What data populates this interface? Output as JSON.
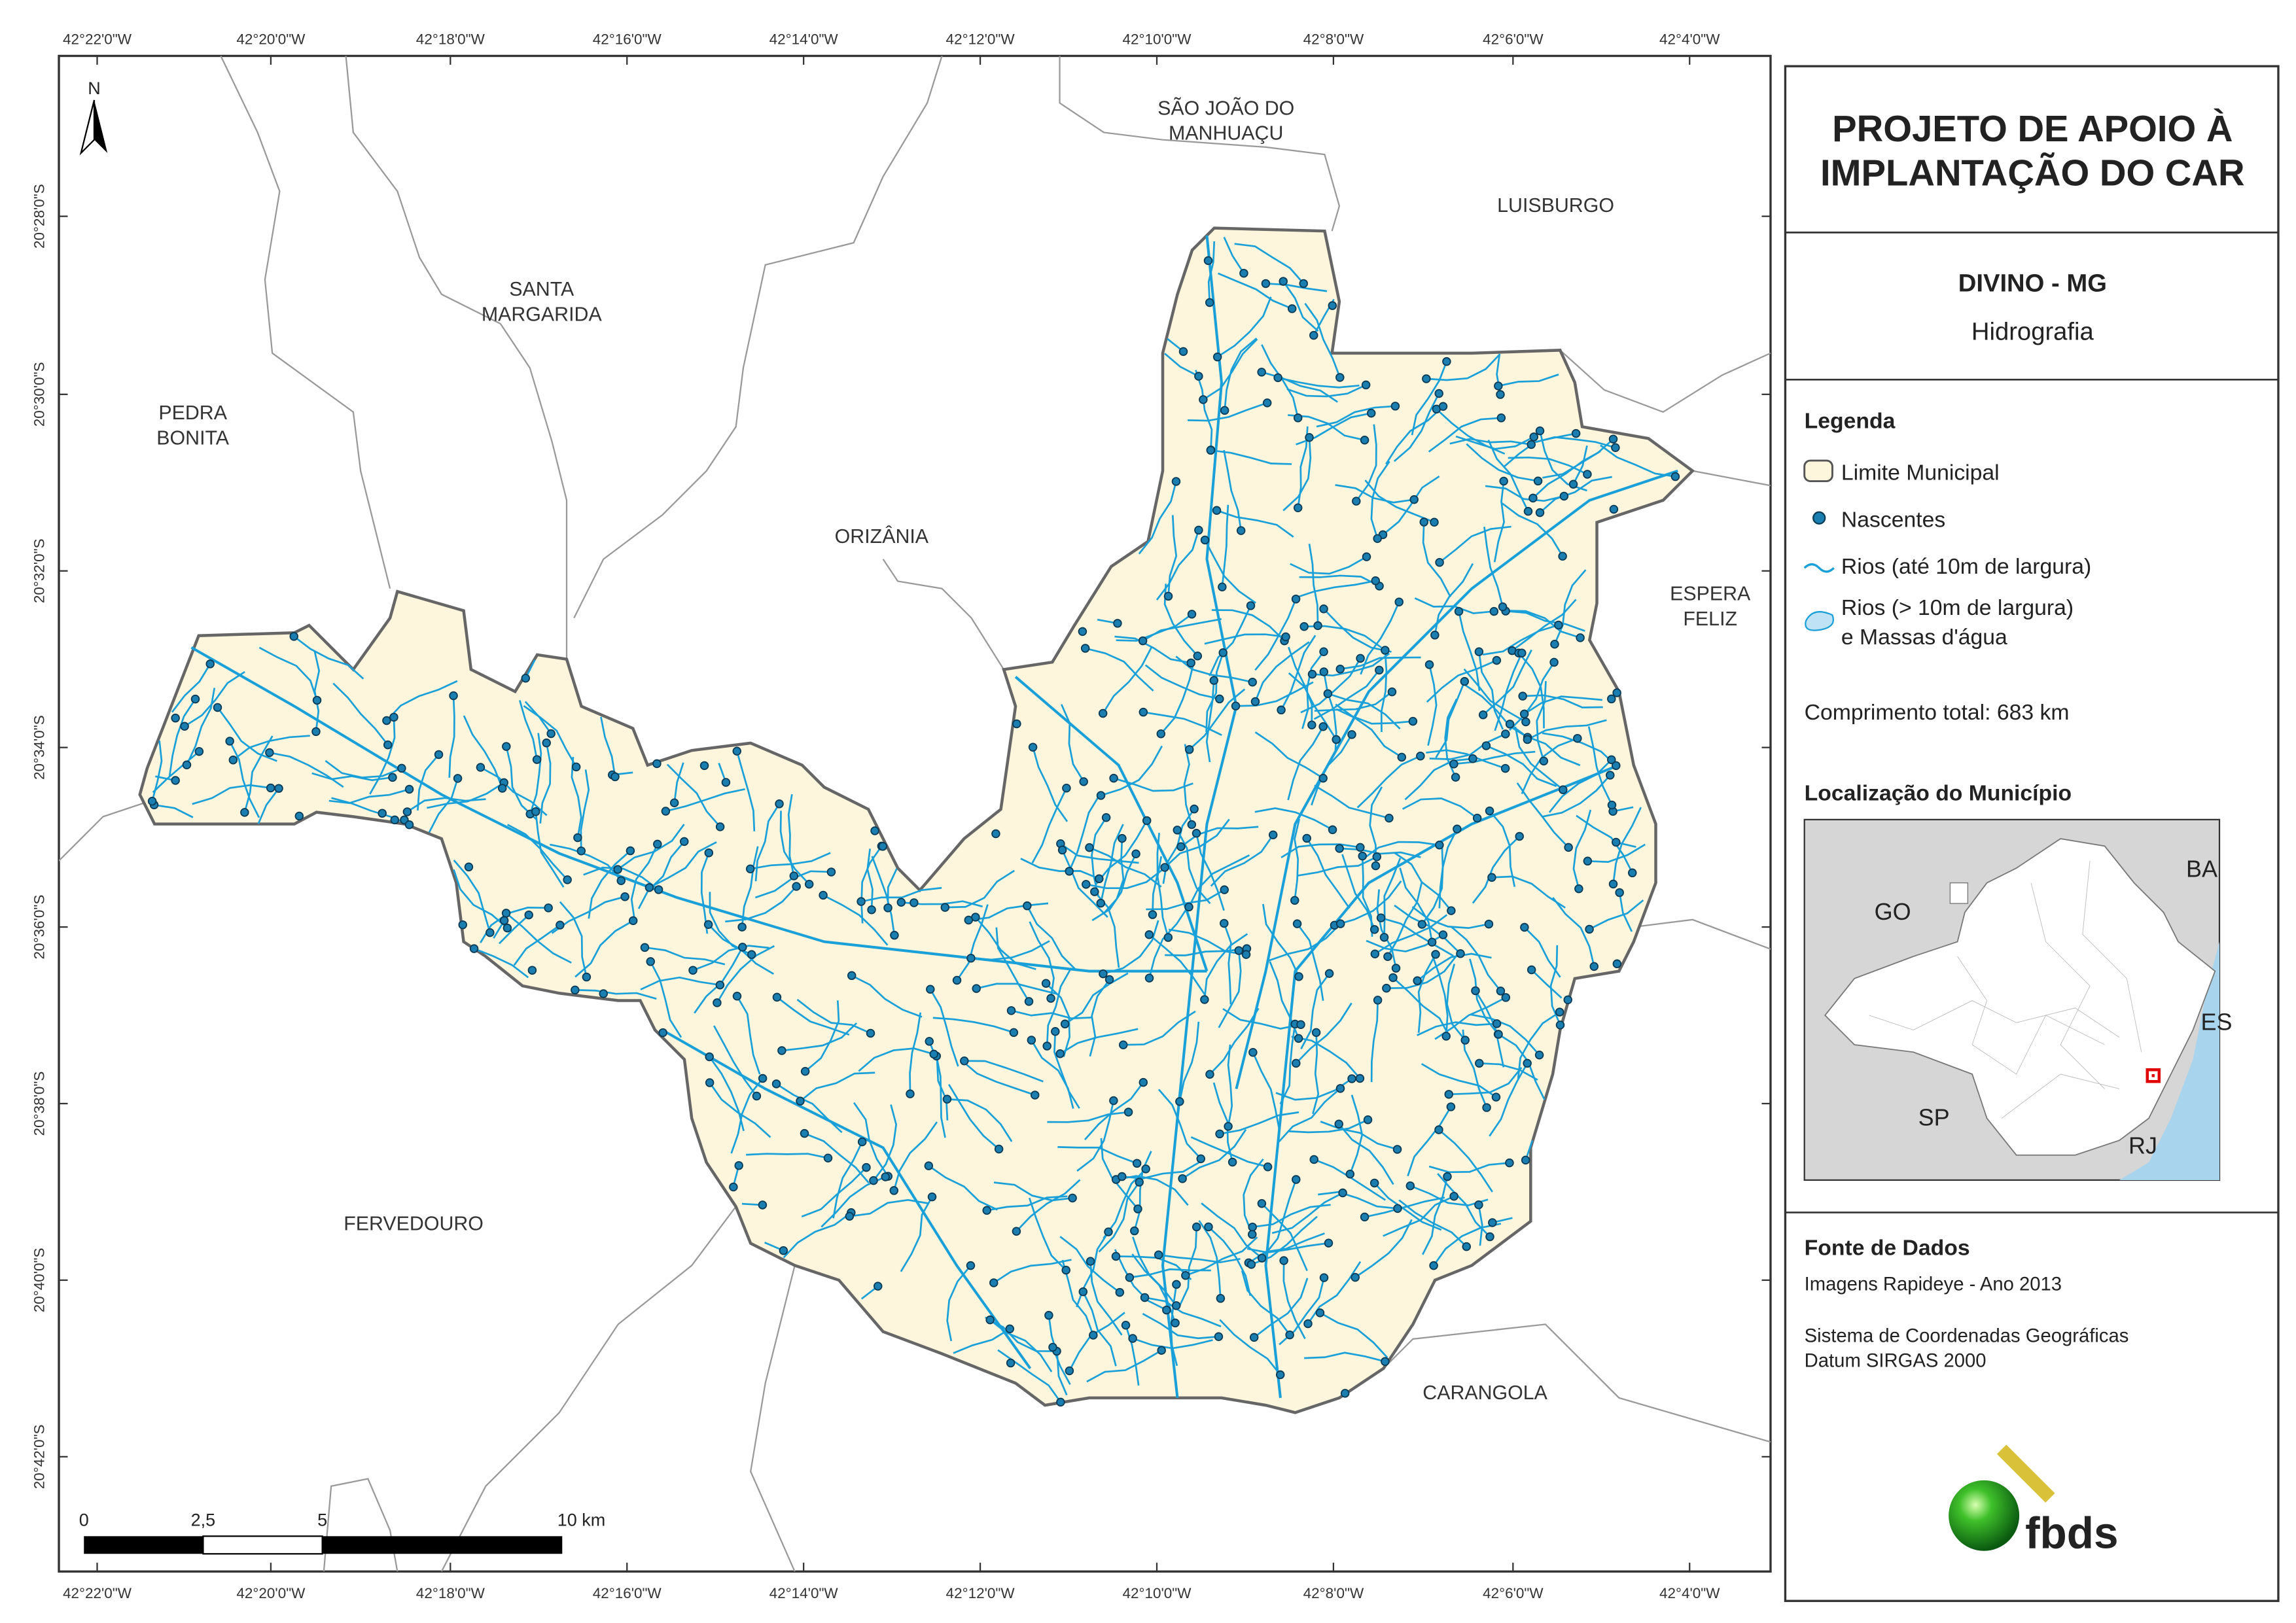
{
  "map": {
    "lon_ticks": [
      "42°22'0\"W",
      "42°20'0\"W",
      "42°18'0\"W",
      "42°16'0\"W",
      "42°14'0\"W",
      "42°12'0\"W",
      "42°10'0\"W",
      "42°8'0\"W",
      "42°6'0\"W",
      "42°4'0\"W"
    ],
    "lat_ticks": [
      "20°28'0\"S",
      "20°30'0\"S",
      "20°32'0\"S",
      "20°34'0\"S",
      "20°36'0\"S",
      "20°38'0\"S",
      "20°40'0\"S",
      "20°42'0\"S"
    ],
    "north": "N",
    "places": [
      {
        "lines": [
          "SÃO JOÃO DO",
          "MANHUAÇU"
        ]
      },
      {
        "lines": [
          "LUISBURGO"
        ]
      },
      {
        "lines": [
          "SANTA",
          "MARGARIDA"
        ]
      },
      {
        "lines": [
          "PEDRA",
          "BONITA"
        ]
      },
      {
        "lines": [
          "ORIZÂNIA"
        ]
      },
      {
        "lines": [
          "ESPERA",
          "FELIZ"
        ]
      },
      {
        "lines": [
          "FERVEDOURO"
        ]
      },
      {
        "lines": [
          "CARANGOLA"
        ]
      }
    ],
    "scale_labels": [
      "0",
      "2,5",
      "5",
      "10 km"
    ]
  },
  "panel": {
    "title": [
      "PROJETO DE APOIO À",
      "IMPLANTAÇÃO DO CAR"
    ],
    "municipality": "DIVINO - MG",
    "theme": "Hidrografia",
    "legend_title": "Legenda",
    "legend": [
      {
        "lines": [
          "Limite Municipal"
        ]
      },
      {
        "lines": [
          "Nascentes"
        ]
      },
      {
        "lines": [
          "Rios (até 10m de largura)"
        ]
      },
      {
        "lines": [
          "Rios (> 10m de largura)",
          "e Massas d'água"
        ]
      }
    ],
    "total_length": "Comprimento total:  683 km",
    "location_title": "Localização do Município",
    "states": [
      "BA",
      "GO",
      "ES",
      "SP",
      "RJ"
    ],
    "source_title": "Fonte de Dados",
    "sources": [
      "Imagens Rapideye - Ano 2013",
      "Sistema de Coordenadas Geográficas",
      "Datum SIRGAS 2000"
    ],
    "logo": "fbds"
  }
}
